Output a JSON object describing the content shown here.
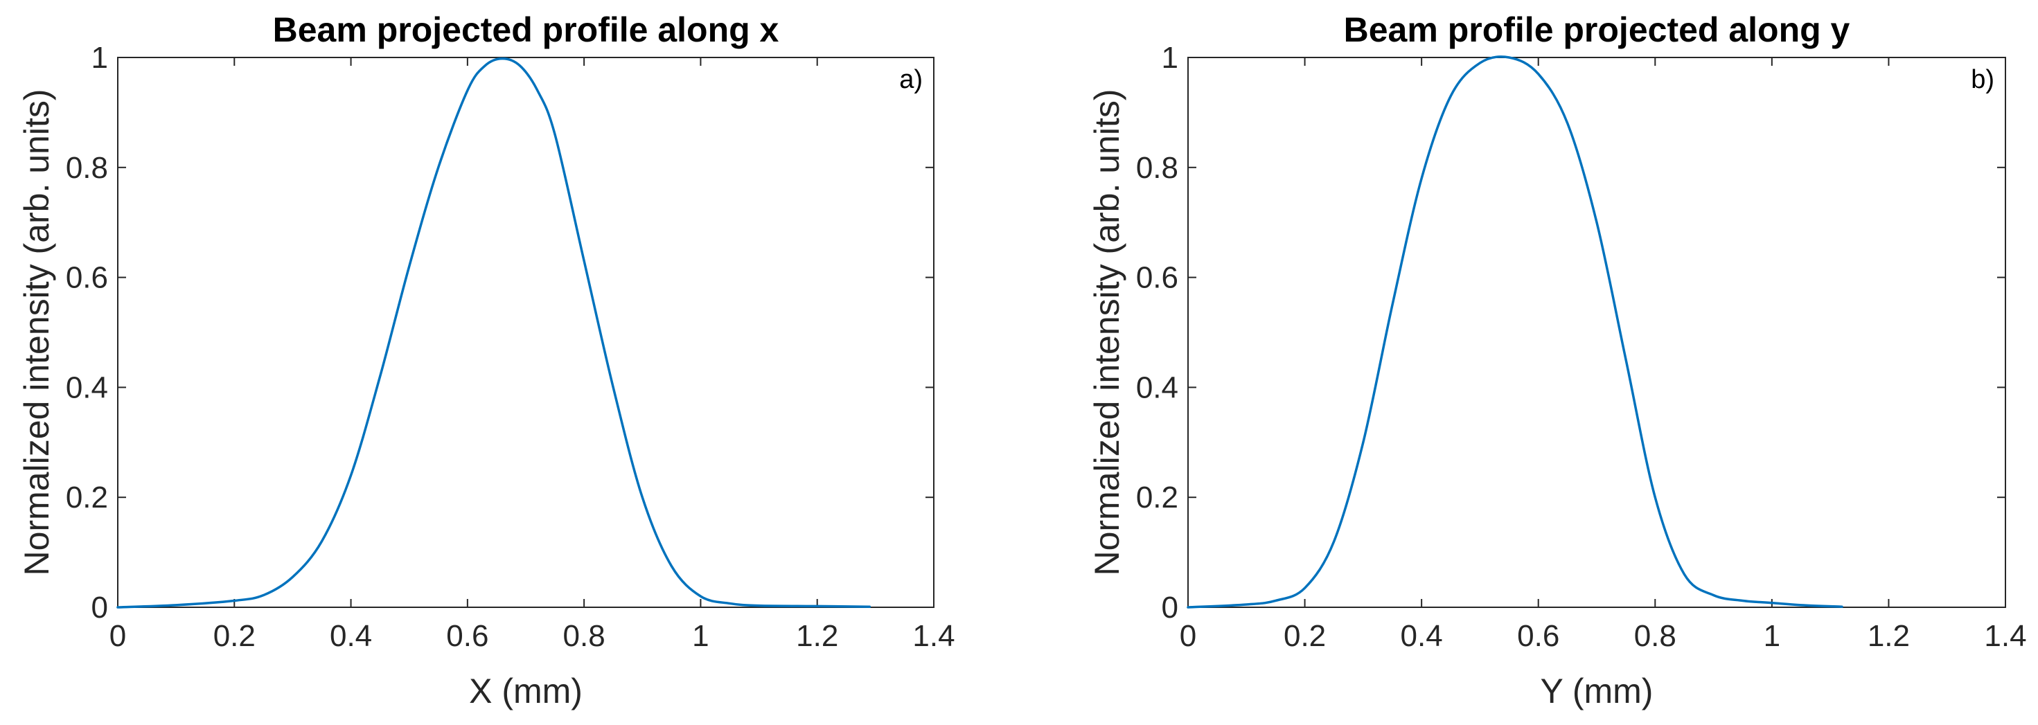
{
  "chart_data": [
    {
      "type": "line",
      "title": "Beam projected profile along x",
      "xlabel": "X (mm)",
      "ylabel": "Normalized intensity (arb. units)",
      "panel_label": "a)",
      "xlim": [
        0,
        1.4
      ],
      "ylim": [
        0,
        1
      ],
      "xticks": [
        0,
        0.2,
        0.4,
        0.6,
        0.8,
        1,
        1.2,
        1.4
      ],
      "yticks": [
        0,
        0.2,
        0.4,
        0.6,
        0.8,
        1
      ],
      "grid": false,
      "color": "#0072BD",
      "series": [
        {
          "x": [
            0,
            0.1,
            0.2,
            0.25,
            0.3,
            0.35,
            0.4,
            0.45,
            0.5,
            0.55,
            0.6,
            0.63,
            0.66,
            0.69,
            0.72,
            0.75,
            0.8,
            0.85,
            0.9,
            0.95,
            1.0,
            1.05,
            1.1,
            1.2,
            1.29
          ],
          "y": [
            0,
            0.004,
            0.012,
            0.022,
            0.055,
            0.12,
            0.24,
            0.42,
            0.62,
            0.8,
            0.94,
            0.985,
            0.998,
            0.985,
            0.94,
            0.86,
            0.63,
            0.4,
            0.2,
            0.075,
            0.02,
            0.007,
            0.003,
            0.002,
            0.001
          ]
        }
      ]
    },
    {
      "type": "line",
      "title": "Beam profile projected along y",
      "xlabel": "Y (mm)",
      "ylabel": "Normalized intensity (arb. units)",
      "panel_label": "b)",
      "xlim": [
        0,
        1.4
      ],
      "ylim": [
        0,
        1
      ],
      "xticks": [
        0,
        0.2,
        0.4,
        0.6,
        0.8,
        1,
        1.2,
        1.4
      ],
      "yticks": [
        0,
        0.2,
        0.4,
        0.6,
        0.8,
        1
      ],
      "grid": false,
      "color": "#0072BD",
      "series": [
        {
          "x": [
            0,
            0.1,
            0.15,
            0.2,
            0.25,
            0.3,
            0.35,
            0.4,
            0.45,
            0.5,
            0.55,
            0.6,
            0.65,
            0.7,
            0.75,
            0.8,
            0.85,
            0.9,
            0.95,
            1.0,
            1.05,
            1.12
          ],
          "y": [
            0,
            0.005,
            0.012,
            0.035,
            0.12,
            0.3,
            0.55,
            0.78,
            0.93,
            0.99,
            1.0,
            0.97,
            0.88,
            0.7,
            0.45,
            0.2,
            0.06,
            0.022,
            0.012,
            0.008,
            0.004,
            0.001
          ]
        }
      ]
    }
  ]
}
